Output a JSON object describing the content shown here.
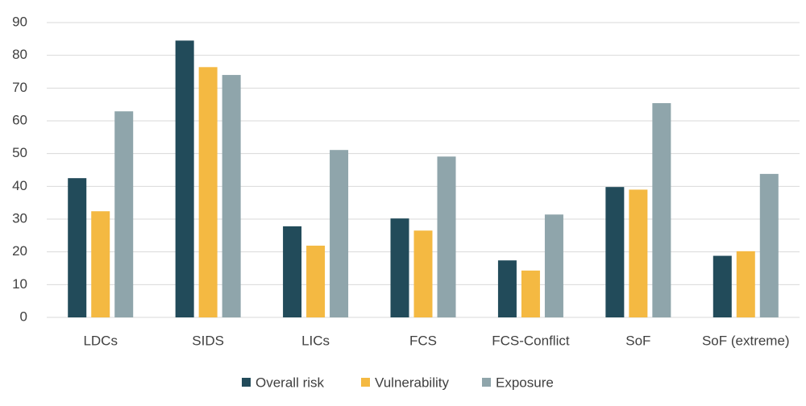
{
  "chart_data": {
    "type": "bar",
    "categories": [
      "LDCs",
      "SIDS",
      "LICs",
      "FCS",
      "FCS-Conflict",
      "SoF",
      "SoF (extreme)"
    ],
    "series": [
      {
        "name": "Overall risk",
        "color": "#224b5a",
        "values": [
          42.5,
          84.5,
          27.8,
          30.2,
          17.4,
          39.8,
          18.8
        ]
      },
      {
        "name": "Vulnerability",
        "color": "#f4b942",
        "values": [
          32.4,
          76.4,
          21.9,
          26.5,
          14.3,
          39.0,
          20.2
        ]
      },
      {
        "name": "Exposure",
        "color": "#8fa5ab",
        "values": [
          62.9,
          74.0,
          51.1,
          49.1,
          31.4,
          65.4,
          43.8
        ]
      }
    ],
    "ylim": [
      0,
      90
    ],
    "yticks": [
      0,
      10,
      20,
      30,
      40,
      50,
      60,
      70,
      80,
      90
    ],
    "grid": true,
    "legend": "bottom"
  }
}
